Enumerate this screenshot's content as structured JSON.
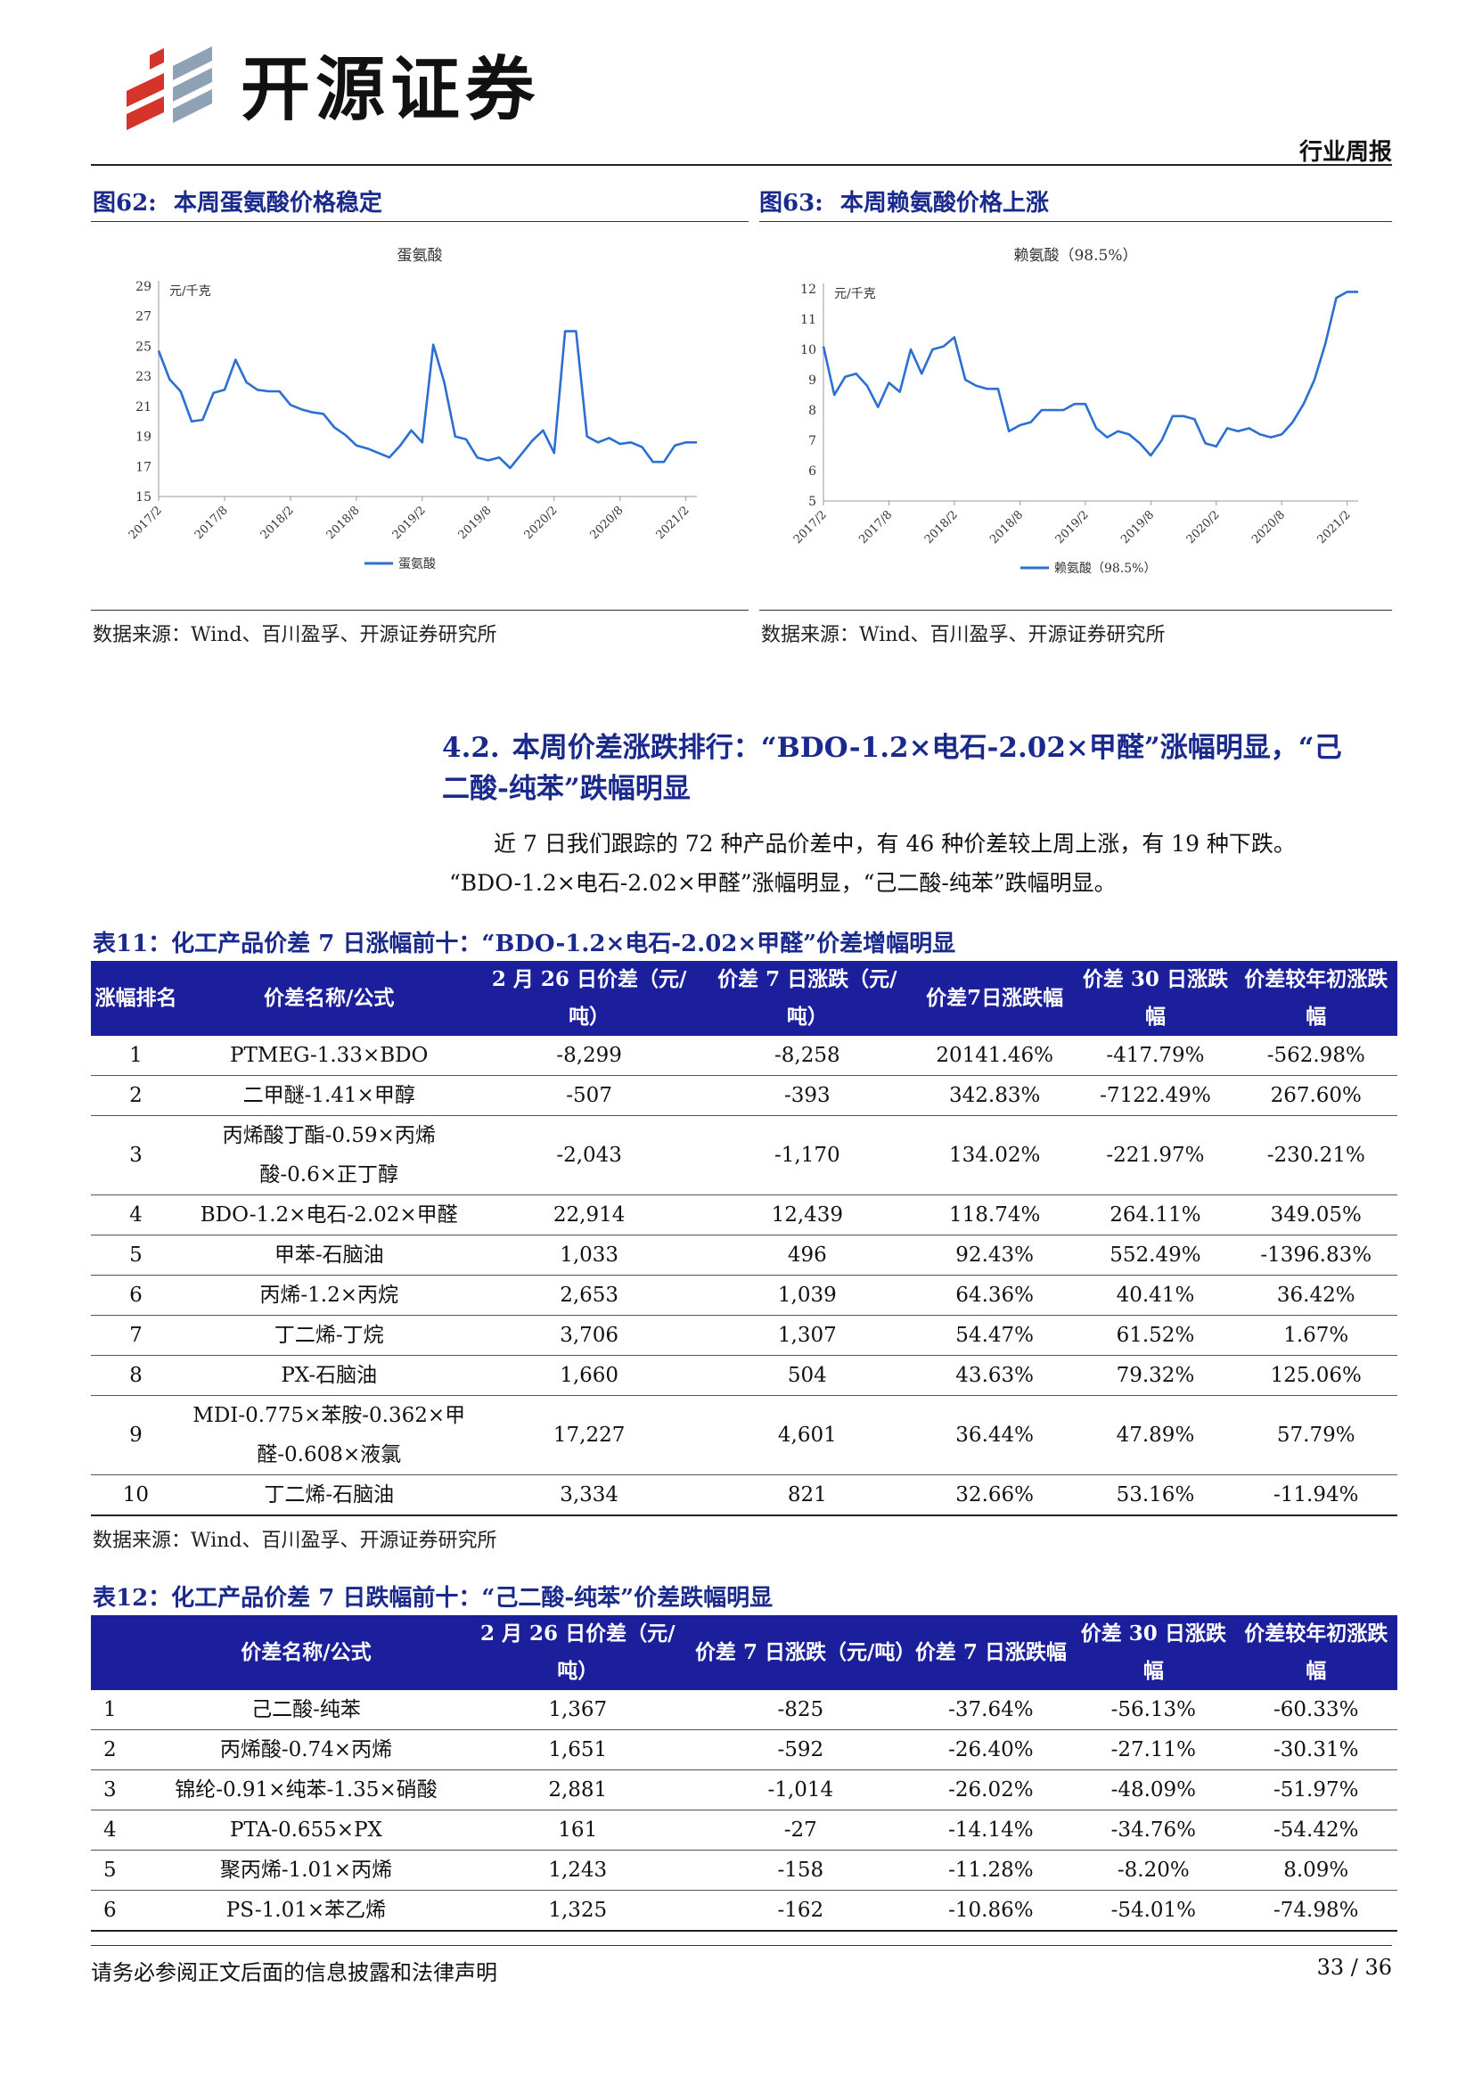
{
  "header": {
    "brand": "开源证券",
    "report_type": "行业周报"
  },
  "figures": [
    {
      "label": "图62:",
      "title": "本周蛋氨酸价格稳定",
      "source": "数据来源：Wind、百川盈孚、开源证券研究所"
    },
    {
      "label": "图63:",
      "title": "本周赖氨酸价格上涨",
      "source": "数据来源：Wind、百川盈孚、开源证券研究所"
    }
  ],
  "chart_data": [
    {
      "type": "line",
      "title": "蛋氨酸",
      "ylabel": "元/千克",
      "ylim": [
        15,
        29
      ],
      "yticks": [
        29,
        27,
        25,
        23,
        21,
        19,
        17,
        15
      ],
      "xticks": [
        "2017/2",
        "2017/8",
        "2018/2",
        "2018/8",
        "2019/2",
        "2019/8",
        "2020/2",
        "2020/8",
        "2021/2"
      ],
      "xrange": [
        "2017-02",
        "2021-03"
      ],
      "legend": "bottom-center",
      "color": "#2a6fd1",
      "series": [
        {
          "name": "蛋氨酸",
          "x": [
            "2017-02",
            "2017-03",
            "2017-04",
            "2017-05",
            "2017-06",
            "2017-07",
            "2017-08",
            "2017-09",
            "2017-10",
            "2017-11",
            "2017-12",
            "2018-01",
            "2018-02",
            "2018-03",
            "2018-04",
            "2018-05",
            "2018-06",
            "2018-07",
            "2018-08",
            "2018-09",
            "2018-10",
            "2018-11",
            "2018-12",
            "2019-01",
            "2019-02",
            "2019-03",
            "2019-04",
            "2019-05",
            "2019-06",
            "2019-07",
            "2019-08",
            "2019-09",
            "2019-10",
            "2019-11",
            "2019-12",
            "2020-01",
            "2020-02",
            "2020-03",
            "2020-04",
            "2020-05",
            "2020-06",
            "2020-07",
            "2020-08",
            "2020-09",
            "2020-10",
            "2020-11",
            "2020-12",
            "2021-01",
            "2021-02",
            "2021-03"
          ],
          "values": [
            24.7,
            22.8,
            22.0,
            20.0,
            20.1,
            21.9,
            22.1,
            24.1,
            22.6,
            22.1,
            22.0,
            22.0,
            21.1,
            20.8,
            20.6,
            20.5,
            19.6,
            19.1,
            18.4,
            18.2,
            17.9,
            17.6,
            18.4,
            19.4,
            18.6,
            25.1,
            22.6,
            19.0,
            18.8,
            17.6,
            17.4,
            17.6,
            16.9,
            17.8,
            18.7,
            19.4,
            17.9,
            26.0,
            26.0,
            19.0,
            18.6,
            18.9,
            18.5,
            18.6,
            18.3,
            17.3,
            17.3,
            18.4,
            18.6,
            18.6
          ]
        }
      ]
    },
    {
      "type": "line",
      "title": "赖氨酸（98.5%）",
      "ylabel": "元/千克",
      "ylim": [
        5,
        12
      ],
      "yticks": [
        12,
        11,
        10,
        9,
        8,
        7,
        6,
        5
      ],
      "xticks": [
        "2017/2",
        "2017/8",
        "2018/2",
        "2018/8",
        "2019/2",
        "2019/8",
        "2020/2",
        "2020/8",
        "2021/2"
      ],
      "xrange": [
        "2017-02",
        "2021-03"
      ],
      "legend": "bottom-center",
      "color": "#2a6fd1",
      "series": [
        {
          "name": "赖氨酸（98.5%）",
          "x": [
            "2017-02",
            "2017-03",
            "2017-04",
            "2017-05",
            "2017-06",
            "2017-07",
            "2017-08",
            "2017-09",
            "2017-10",
            "2017-11",
            "2017-12",
            "2018-01",
            "2018-02",
            "2018-03",
            "2018-04",
            "2018-05",
            "2018-06",
            "2018-07",
            "2018-08",
            "2018-09",
            "2018-10",
            "2018-11",
            "2018-12",
            "2019-01",
            "2019-02",
            "2019-03",
            "2019-04",
            "2019-05",
            "2019-06",
            "2019-07",
            "2019-08",
            "2019-09",
            "2019-10",
            "2019-11",
            "2019-12",
            "2020-01",
            "2020-02",
            "2020-03",
            "2020-04",
            "2020-05",
            "2020-06",
            "2020-07",
            "2020-08",
            "2020-09",
            "2020-10",
            "2020-11",
            "2020-12",
            "2021-01",
            "2021-02",
            "2021-03"
          ],
          "values": [
            10.1,
            8.5,
            9.1,
            9.2,
            8.8,
            8.1,
            8.9,
            8.6,
            10.0,
            9.2,
            10.0,
            10.1,
            10.4,
            9.0,
            8.8,
            8.7,
            8.7,
            7.3,
            7.5,
            7.6,
            8.0,
            8.0,
            8.0,
            8.2,
            8.2,
            7.4,
            7.1,
            7.3,
            7.2,
            6.9,
            6.5,
            7.0,
            7.8,
            7.8,
            7.7,
            6.9,
            6.8,
            7.4,
            7.3,
            7.4,
            7.2,
            7.1,
            7.2,
            7.6,
            8.2,
            9.0,
            10.2,
            11.7,
            11.9,
            11.9
          ]
        }
      ]
    }
  ],
  "section": {
    "number": "4.2.",
    "title_line1": "本周价差涨跌排行：“BDO-1.2×电石-2.02×甲醛”涨幅明显，“己",
    "title_line2": "二酸-纯苯”跌幅明显",
    "para_line1": "近 7 日我们跟踪的 72 种产品价差中，有 46 种价差较上周上涨，有 19 种下跌。",
    "para_line2": "“BDO-1.2×电石-2.02×甲醛”涨幅明显，“己二酸-纯苯”跌幅明显。"
  },
  "table11": {
    "title": "表11：化工产品价差 7 日涨幅前十：“BDO-1.2×电石-2.02×甲醛”价差增幅明显",
    "headers": [
      "涨幅排名",
      "价差名称/公式",
      "2 月 26 日价差（元/吨）",
      "价差 7 日涨跌（元/吨）",
      "价差7日涨跌幅",
      "价差 30 日涨跌幅",
      "价差较年初涨跌幅"
    ],
    "rows": [
      [
        "1",
        "PTMEG-1.33×BDO",
        "-8,299",
        "-8,258",
        "20141.46%",
        "-417.79%",
        "-562.98%"
      ],
      [
        "2",
        "二甲醚-1.41×甲醇",
        "-507",
        "-393",
        "342.83%",
        "-7122.49%",
        "267.60%"
      ],
      [
        "3",
        "丙烯酸丁酯-0.59×丙烯酸-0.6×正丁醇",
        "-2,043",
        "-1,170",
        "134.02%",
        "-221.97%",
        "-230.21%"
      ],
      [
        "4",
        "BDO-1.2×电石-2.02×甲醛",
        "22,914",
        "12,439",
        "118.74%",
        "264.11%",
        "349.05%"
      ],
      [
        "5",
        "甲苯-石脑油",
        "1,033",
        "496",
        "92.43%",
        "552.49%",
        "-1396.83%"
      ],
      [
        "6",
        "丙烯-1.2×丙烷",
        "2,653",
        "1,039",
        "64.36%",
        "40.41%",
        "36.42%"
      ],
      [
        "7",
        "丁二烯-丁烷",
        "3,706",
        "1,307",
        "54.47%",
        "61.52%",
        "1.67%"
      ],
      [
        "8",
        "PX-石脑油",
        "1,660",
        "504",
        "43.63%",
        "79.32%",
        "125.06%"
      ],
      [
        "9",
        "MDI-0.775×苯胺-0.362×甲醛-0.608×液氯",
        "17,227",
        "4,601",
        "36.44%",
        "47.89%",
        "57.79%"
      ],
      [
        "10",
        "丁二烯-石脑油",
        "3,334",
        "821",
        "32.66%",
        "53.16%",
        "-11.94%"
      ]
    ],
    "source": "数据来源：Wind、百川盈孚、开源证券研究所"
  },
  "table12": {
    "title": "表12：化工产品价差 7 日跌幅前十：“己二酸-纯苯”价差跌幅明显",
    "headers": [
      "",
      "价差名称/公式",
      "2 月 26 日价差（元/吨）",
      "价差 7 日涨跌（元/吨）",
      "价差 7 日涨跌幅",
      "价差 30 日涨跌幅",
      "价差较年初涨跌幅"
    ],
    "rows": [
      [
        "1",
        "己二酸-纯苯",
        "1,367",
        "-825",
        "-37.64%",
        "-56.13%",
        "-60.33%"
      ],
      [
        "2",
        "丙烯酸-0.74×丙烯",
        "1,651",
        "-592",
        "-26.40%",
        "-27.11%",
        "-30.31%"
      ],
      [
        "3",
        "锦纶-0.91×纯苯-1.35×硝酸",
        "2,881",
        "-1,014",
        "-26.02%",
        "-48.09%",
        "-51.97%"
      ],
      [
        "4",
        "PTA-0.655×PX",
        "161",
        "-27",
        "-14.14%",
        "-34.76%",
        "-54.42%"
      ],
      [
        "5",
        "聚丙烯-1.01×丙烯",
        "1,243",
        "-158",
        "-11.28%",
        "-8.20%",
        "8.09%"
      ],
      [
        "6",
        "PS-1.01×苯乙烯",
        "1,325",
        "-162",
        "-10.86%",
        "-54.01%",
        "-74.98%"
      ]
    ]
  },
  "footer": {
    "disclaimer": "请务必参阅正文后面的信息披露和法律声明",
    "page": "33 / 36"
  }
}
